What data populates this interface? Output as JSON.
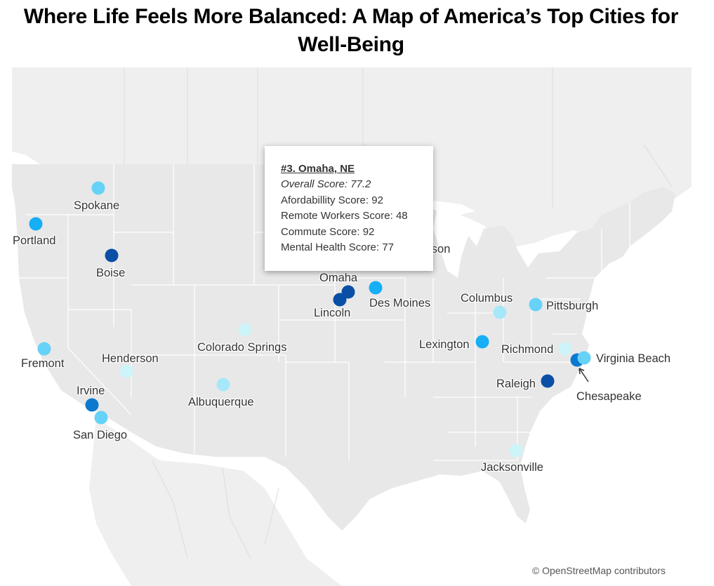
{
  "title": "Where Life Feels More Balanced: A Map of America’s Top Cities for Well-Being",
  "attribution": "© OpenStreetMap contributors",
  "tooltip": {
    "heading": "#3. Omaha, NE",
    "overall": "Overall Score: 77.2",
    "affordability": "Afordabillity Score: 92",
    "remote": "Remote Workers Score: 48",
    "commute": "Commute Score: 92",
    "mental": "Mental Health Score: 77"
  },
  "colors": {
    "darkest": "#0a4fa6",
    "dark": "#0b79d0",
    "medium": "#16aef5",
    "light": "#66d2f7",
    "lighter": "#a6e8fa",
    "lightest": "#cdf4f8"
  },
  "cities": [
    {
      "name": "Spokane",
      "tone": "light"
    },
    {
      "name": "Portland",
      "tone": "medium"
    },
    {
      "name": "Boise",
      "tone": "darkest"
    },
    {
      "name": "Fremont",
      "tone": "light"
    },
    {
      "name": "Henderson",
      "tone": "lightest"
    },
    {
      "name": "Irvine",
      "tone": "dark"
    },
    {
      "name": "San Diego",
      "tone": "light"
    },
    {
      "name": "Colorado Springs",
      "tone": "lightest"
    },
    {
      "name": "Albuquerque",
      "tone": "lighter"
    },
    {
      "name": "Omaha",
      "tone": "darkest"
    },
    {
      "name": "Lincoln",
      "tone": "darkest"
    },
    {
      "name": "Des Moines",
      "tone": "medium"
    },
    {
      "name": "Columbus",
      "tone": "lighter"
    },
    {
      "name": "Pittsburgh",
      "tone": "light"
    },
    {
      "name": "Lexington",
      "tone": "medium"
    },
    {
      "name": "Richmond",
      "tone": "lightest"
    },
    {
      "name": "Virginia Beach",
      "tone": "light"
    },
    {
      "name": "Chesapeake",
      "tone": "dark"
    },
    {
      "name": "Raleigh",
      "tone": "darkest"
    },
    {
      "name": "Jacksonville",
      "tone": "lightest"
    },
    {
      "name": "Madison",
      "tone": "light"
    }
  ]
}
